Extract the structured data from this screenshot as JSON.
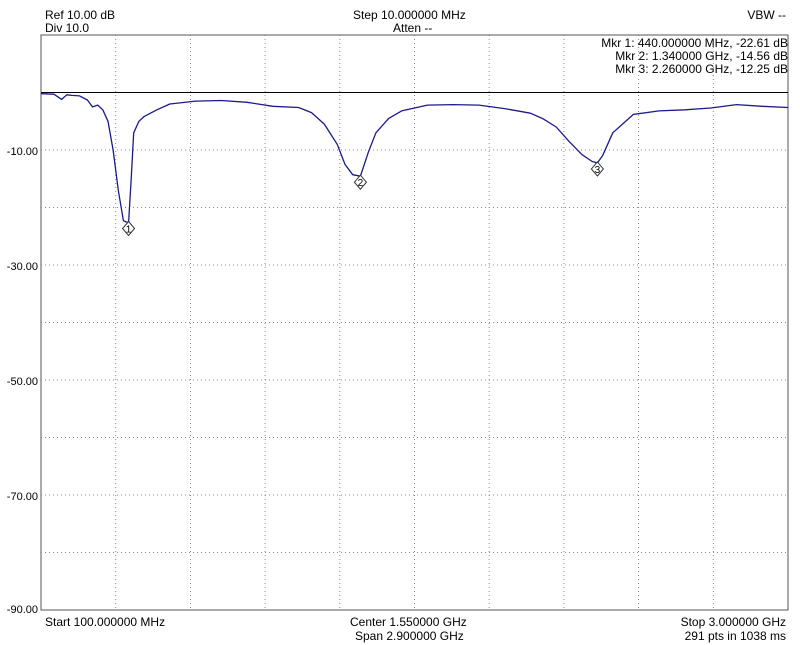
{
  "header": {
    "ref": "Ref 10.00 dB",
    "div": "Div 10.0",
    "step": "Step 10.000000 MHz",
    "atten": "Atten --",
    "vbw": "VBW --"
  },
  "footer": {
    "start": "Start 100.000000 MHz",
    "center": "Center 1.550000 GHz",
    "span": "Span 2.900000 GHz",
    "stop": "Stop 3.000000 GHz",
    "points": "291 pts in 1038 ms"
  },
  "markers_readout": [
    "Mkr 1: 440.000000 MHz, -22.61 dB",
    "Mkr 2: 1.340000 GHz, -14.56 dB",
    "Mkr 3: 2.260000 GHz, -12.25 dB"
  ],
  "colors": {
    "trace": "#1a1a8c",
    "grid": "#888888",
    "ref_line": "#000000"
  },
  "chart_data": {
    "type": "line",
    "x_unit": "GHz",
    "y_unit": "dB",
    "xlim": [
      0.1,
      3.0
    ],
    "ylim": [
      -90,
      10
    ],
    "y_tick_labels": [
      "-10.00",
      "-30.00",
      "-50.00",
      "-70.00",
      "-90.00"
    ],
    "y_tick_values": [
      -10,
      -30,
      -50,
      -70,
      -90
    ],
    "x_divisions": 10,
    "y_divisions": 9,
    "ref_level": 0,
    "grid": true,
    "series": [
      {
        "x": [
          0.1,
          0.15,
          0.18,
          0.2,
          0.22,
          0.25,
          0.28,
          0.3,
          0.32,
          0.34,
          0.36,
          0.38,
          0.4,
          0.42,
          0.43,
          0.44,
          0.45,
          0.46,
          0.48,
          0.5,
          0.55,
          0.6,
          0.7,
          0.8,
          0.9,
          1.0,
          1.1,
          1.15,
          1.2,
          1.25,
          1.28,
          1.31,
          1.34,
          1.37,
          1.4,
          1.45,
          1.5,
          1.6,
          1.7,
          1.8,
          1.9,
          2.0,
          2.05,
          2.1,
          2.15,
          2.2,
          2.24,
          2.26,
          2.28,
          2.32,
          2.4,
          2.5,
          2.6,
          2.7,
          2.8,
          2.9,
          3.0
        ],
        "y": [
          -0.2,
          -0.3,
          -1.2,
          -0.4,
          -0.5,
          -0.6,
          -1.3,
          -2.5,
          -2.2,
          -3.0,
          -5.0,
          -10.0,
          -17.0,
          -22.3,
          -22.5,
          -22.61,
          -15.0,
          -7.0,
          -5.0,
          -4.2,
          -3.0,
          -2.0,
          -1.5,
          -1.4,
          -1.7,
          -2.4,
          -2.6,
          -3.5,
          -5.5,
          -9.0,
          -12.5,
          -14.3,
          -14.56,
          -10.5,
          -7.0,
          -4.5,
          -3.2,
          -2.2,
          -2.1,
          -2.2,
          -2.8,
          -3.6,
          -4.6,
          -6.0,
          -8.5,
          -10.8,
          -12.0,
          -12.25,
          -11.0,
          -7.0,
          -3.8,
          -3.2,
          -3.0,
          -2.7,
          -2.1,
          -2.4,
          -2.6
        ]
      }
    ],
    "markers": [
      {
        "label": "1",
        "x": 0.44,
        "y": -22.61
      },
      {
        "label": "2",
        "x": 1.34,
        "y": -14.56
      },
      {
        "label": "3",
        "x": 2.26,
        "y": -12.25
      }
    ]
  }
}
